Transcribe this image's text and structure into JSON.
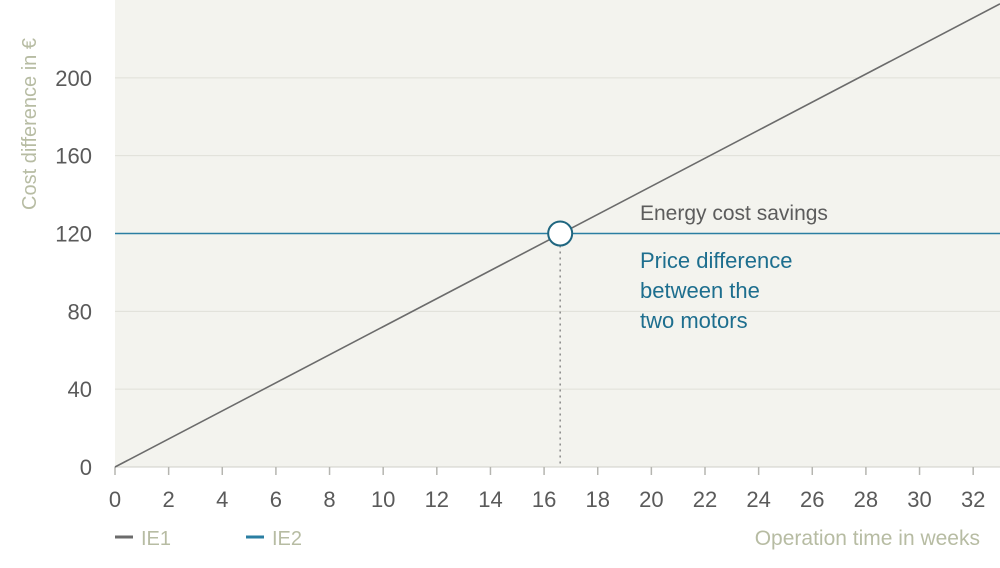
{
  "chart_data": {
    "type": "line",
    "xlabel": "Operation time in weeks",
    "ylabel": "Cost difference in €",
    "xlim": [
      0,
      33
    ],
    "ylim": [
      0,
      240
    ],
    "x_ticks": [
      0,
      2,
      4,
      6,
      8,
      10,
      12,
      14,
      16,
      18,
      20,
      22,
      24,
      26,
      28,
      30,
      32
    ],
    "y_ticks": [
      0,
      40,
      80,
      120,
      160,
      200
    ],
    "grid": true,
    "legend_position": "bottom-left",
    "series": [
      {
        "name": "IE1",
        "label": "Energy cost savings",
        "color": "#6b6b6b",
        "x": [
          0,
          33
        ],
        "y": [
          0,
          238
        ]
      },
      {
        "name": "IE2",
        "label": "Price difference between the two motors",
        "label_lines": [
          "Price difference",
          "between the",
          "two motors"
        ],
        "color": "#2a7ea2",
        "x": [
          0,
          33
        ],
        "y": [
          120,
          120
        ]
      }
    ],
    "break_even": {
      "x": 16.6,
      "y": 120
    }
  },
  "colors": {
    "plot_background": "#f3f3ee",
    "grid": "#e0e0d8",
    "tick_text": "#5a5a5a",
    "axis_title": "#b7bca3",
    "ie1_label": "#5c5c5c",
    "ie2_label": "#1d6e8e",
    "marker_stroke": "#1f6680",
    "dotted_line": "#8a8a8a"
  }
}
